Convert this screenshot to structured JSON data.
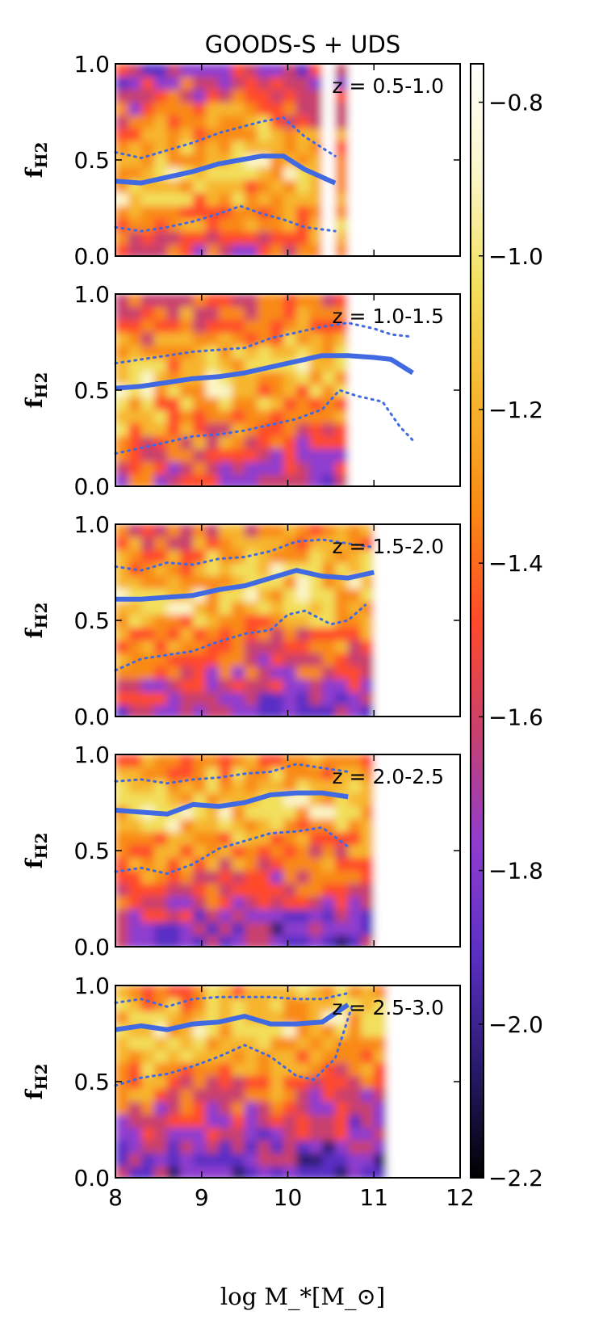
{
  "chart_data": {
    "title": "GOODS-S + UDS",
    "type": "heatmap",
    "xlabel": "log M_*[M_⊙]",
    "xlim": [
      8,
      12
    ],
    "xticks": [
      "8",
      "9",
      "10",
      "11",
      "12"
    ],
    "colorbar": {
      "ticks": [
        "−0.8",
        "−1.0",
        "−1.2",
        "−1.4",
        "−1.6",
        "−1.8",
        "−2.0",
        "−2.2"
      ],
      "range": [
        -2.2,
        -0.75
      ],
      "colormap": [
        "#000000",
        "#2a1a6e",
        "#5a2fc4",
        "#8f3ccf",
        "#c8406e",
        "#ff4a2a",
        "#f98a14",
        "#f7b52e",
        "#f2df5c",
        "#fbf6c8",
        "#ffffff"
      ]
    },
    "panels": [
      {
        "label": "z = 0.5-1.0",
        "ylabel": "f_H2",
        "ylim": [
          0,
          1
        ],
        "yticks": [
          "0.0",
          "0.5",
          "1.0"
        ],
        "series": [
          {
            "style": "solid",
            "x": [
              8.0,
              8.3,
              8.6,
              8.9,
              9.2,
              9.45,
              9.7,
              9.95,
              10.2,
              10.55
            ],
            "y": [
              0.39,
              0.38,
              0.41,
              0.44,
              0.48,
              0.5,
              0.52,
              0.52,
              0.45,
              0.38
            ]
          },
          {
            "style": "dotted",
            "x": [
              8.0,
              8.3,
              8.6,
              8.9,
              9.2,
              9.45,
              9.7,
              9.95,
              10.2,
              10.55
            ],
            "y": [
              0.54,
              0.51,
              0.55,
              0.59,
              0.64,
              0.67,
              0.7,
              0.72,
              0.62,
              0.52
            ]
          },
          {
            "style": "dotted",
            "x": [
              8.0,
              8.3,
              8.6,
              8.9,
              9.2,
              9.45,
              9.7,
              9.95,
              10.2,
              10.55
            ],
            "y": [
              0.15,
              0.13,
              0.15,
              0.18,
              0.22,
              0.26,
              0.22,
              0.19,
              0.15,
              0.13
            ]
          }
        ]
      },
      {
        "label": "z = 1.0-1.5",
        "ylabel": "f_H2",
        "ylim": [
          0,
          1
        ],
        "yticks": [
          "0.0",
          "0.5",
          "1.0"
        ],
        "series": [
          {
            "style": "solid",
            "x": [
              8.0,
              8.3,
              8.6,
              8.9,
              9.2,
              9.5,
              9.8,
              10.1,
              10.4,
              10.7,
              11.0,
              11.2,
              11.45
            ],
            "y": [
              0.51,
              0.52,
              0.54,
              0.56,
              0.57,
              0.59,
              0.62,
              0.65,
              0.68,
              0.68,
              0.67,
              0.66,
              0.59
            ]
          },
          {
            "style": "dotted",
            "x": [
              8.0,
              8.3,
              8.6,
              8.9,
              9.2,
              9.5,
              9.8,
              10.1,
              10.4,
              10.7,
              11.0,
              11.2,
              11.4
            ],
            "y": [
              0.64,
              0.66,
              0.68,
              0.7,
              0.71,
              0.72,
              0.77,
              0.8,
              0.83,
              0.85,
              0.82,
              0.79,
              0.78
            ]
          },
          {
            "style": "dotted",
            "x": [
              8.0,
              8.3,
              8.6,
              8.9,
              9.2,
              9.5,
              9.8,
              10.1,
              10.4,
              10.6,
              10.8,
              11.1,
              11.3,
              11.45
            ],
            "y": [
              0.17,
              0.2,
              0.23,
              0.26,
              0.27,
              0.29,
              0.32,
              0.35,
              0.4,
              0.5,
              0.47,
              0.44,
              0.31,
              0.24
            ]
          }
        ]
      },
      {
        "label": "z = 1.5-2.0",
        "ylabel": "f_H2",
        "ylim": [
          0,
          1
        ],
        "yticks": [
          "0.0",
          "0.5",
          "1.0"
        ],
        "series": [
          {
            "style": "solid",
            "x": [
              8.0,
              8.3,
              8.6,
              8.9,
              9.2,
              9.5,
              9.8,
              10.1,
              10.4,
              10.7,
              11.0
            ],
            "y": [
              0.61,
              0.61,
              0.62,
              0.63,
              0.66,
              0.68,
              0.72,
              0.76,
              0.73,
              0.72,
              0.75
            ]
          },
          {
            "style": "dotted",
            "x": [
              8.0,
              8.3,
              8.6,
              8.9,
              9.2,
              9.5,
              9.8,
              10.1,
              10.4,
              10.7,
              11.0
            ],
            "y": [
              0.78,
              0.76,
              0.8,
              0.79,
              0.82,
              0.83,
              0.86,
              0.91,
              0.92,
              0.9,
              0.88
            ]
          },
          {
            "style": "dotted",
            "x": [
              8.0,
              8.3,
              8.6,
              8.9,
              9.2,
              9.5,
              9.8,
              10.0,
              10.2,
              10.5,
              10.7,
              10.9
            ],
            "y": [
              0.24,
              0.3,
              0.32,
              0.34,
              0.39,
              0.43,
              0.45,
              0.53,
              0.55,
              0.48,
              0.5,
              0.58
            ]
          }
        ]
      },
      {
        "label": "z = 2.0-2.5",
        "ylabel": "f_H2",
        "ylim": [
          0,
          1
        ],
        "yticks": [
          "0.0",
          "0.5",
          "1.0"
        ],
        "series": [
          {
            "style": "solid",
            "x": [
              8.0,
              8.3,
              8.6,
              8.9,
              9.2,
              9.5,
              9.8,
              10.1,
              10.4,
              10.7
            ],
            "y": [
              0.71,
              0.7,
              0.69,
              0.74,
              0.73,
              0.75,
              0.79,
              0.8,
              0.8,
              0.78
            ]
          },
          {
            "style": "dotted",
            "x": [
              8.0,
              8.3,
              8.6,
              8.9,
              9.2,
              9.5,
              9.8,
              10.1,
              10.4,
              10.7
            ],
            "y": [
              0.86,
              0.87,
              0.85,
              0.87,
              0.88,
              0.9,
              0.91,
              0.95,
              0.93,
              0.91
            ]
          },
          {
            "style": "dotted",
            "x": [
              8.0,
              8.3,
              8.6,
              8.9,
              9.2,
              9.5,
              9.8,
              10.1,
              10.4,
              10.7
            ],
            "y": [
              0.39,
              0.41,
              0.38,
              0.43,
              0.51,
              0.55,
              0.59,
              0.6,
              0.62,
              0.52
            ]
          }
        ]
      },
      {
        "label": "z = 2.5-3.0",
        "ylabel": "f_H2",
        "ylim": [
          0,
          1
        ],
        "yticks": [
          "0.0",
          "0.5",
          "1.0"
        ],
        "series": [
          {
            "style": "solid",
            "x": [
              8.0,
              8.3,
              8.6,
              8.9,
              9.2,
              9.5,
              9.8,
              10.1,
              10.4,
              10.7
            ],
            "y": [
              0.77,
              0.79,
              0.77,
              0.8,
              0.81,
              0.84,
              0.8,
              0.8,
              0.81,
              0.9
            ]
          },
          {
            "style": "dotted",
            "x": [
              8.0,
              8.3,
              8.6,
              8.9,
              9.2,
              9.5,
              9.8,
              10.1,
              10.4,
              10.7
            ],
            "y": [
              0.91,
              0.93,
              0.89,
              0.93,
              0.94,
              0.94,
              0.94,
              0.93,
              0.93,
              0.96
            ]
          },
          {
            "style": "dotted",
            "x": [
              8.0,
              8.3,
              8.6,
              8.9,
              9.2,
              9.5,
              9.8,
              10.1,
              10.3,
              10.55,
              10.75
            ],
            "y": [
              0.48,
              0.52,
              0.54,
              0.58,
              0.63,
              0.69,
              0.63,
              0.53,
              0.51,
              0.62,
              0.9
            ]
          }
        ]
      }
    ]
  }
}
